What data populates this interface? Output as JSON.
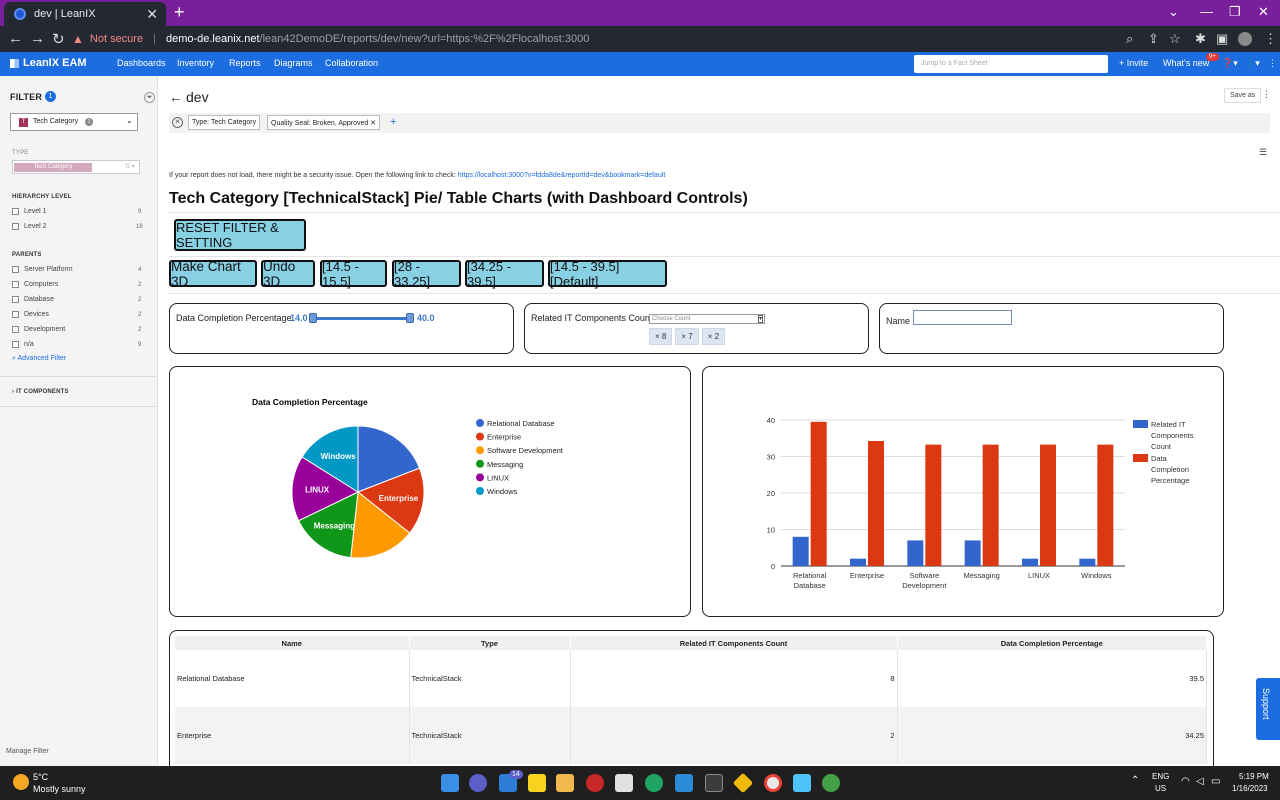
{
  "browser": {
    "tab_title": "dev | LeanIX",
    "close_glyph": "✕",
    "newtab_glyph": "+",
    "not_secure": "Not secure",
    "url_host": "demo-de.leanix.net",
    "url_path": "/lean42DemoDE/reports/dev/new?url=https:%2F%2Flocalhost:3000"
  },
  "appnav": {
    "brand": "LeanIX EAM",
    "items": [
      "Dashboards",
      "Inventory",
      "Reports",
      "Diagrams",
      "Collaboration"
    ],
    "jump_placeholder": "Jump to a Fact Sheet",
    "invite": "+ Invite",
    "whats_new": "What's new",
    "badge": "9+"
  },
  "sidebar": {
    "filter_label": "FILTER",
    "filter_count": "1",
    "type_select": "Tech Category",
    "type_select_count": "1",
    "type_letter": "T",
    "type_section": "TYPE",
    "type_value": "Tech Category",
    "hierarchy_title": "HIERARCHY LEVEL",
    "hierarchy": [
      {
        "label": "Level 1",
        "count": "9"
      },
      {
        "label": "Level 2",
        "count": "18"
      }
    ],
    "parents_title": "PARENTS",
    "parents": [
      {
        "label": "Server Platform",
        "count": "4"
      },
      {
        "label": "Computers",
        "count": "2"
      },
      {
        "label": "Database",
        "count": "2"
      },
      {
        "label": "Devices",
        "count": "2"
      },
      {
        "label": "Development",
        "count": "2"
      },
      {
        "label": "n/a",
        "count": "9"
      }
    ],
    "advanced": "Advanced Filter",
    "it_components": "IT COMPONENTS",
    "manage": "Manage Filter"
  },
  "report": {
    "title": "dev",
    "save_as": "Save as",
    "filter_type": "Type: ",
    "filter_type_val": "Tech Category",
    "filter_seal": "Quality Seal: ",
    "filter_seal_val": "Broken, Approved",
    "notice": "If your report does not load, there might be a security issue. Open the following link to check: ",
    "notice_link": "https://localhost:3000?v=fdda8de&reportId=dev&bookmark=default",
    "heading": "Tech Category [TechnicalStack] Pie/ Table Charts (with Dashboard Controls)",
    "reset": "RESET FILTER & SETTING",
    "buttons": [
      "Make Chart 3D",
      "Undo 3D",
      "[14.5 - 15.5]",
      "[28 - 33.25]",
      "[34.25 - 39.5]",
      "[14.5 - 39.5] [Default]"
    ],
    "slider_label": "Data Completion Percentage",
    "slider_min": "14.0",
    "slider_max": "40.0",
    "count_label": "Related IT Components Count",
    "count_placeholder": "Choose Count",
    "count_chips": [
      "× 8",
      "× 7",
      "× 2"
    ],
    "name_label": "Name"
  },
  "chart_data": [
    {
      "type": "pie",
      "title": "Data Completion Percentage",
      "categories": [
        "Relational Database",
        "Enterprise",
        "Software Development",
        "Messaging",
        "LINUX",
        "Windows"
      ],
      "values": [
        39.5,
        34.25,
        33.25,
        33.25,
        33.25,
        33.25
      ],
      "colors": [
        "#3366cc",
        "#dc3912",
        "#ff9900",
        "#109618",
        "#990099",
        "#0099c6"
      ],
      "legend": "right"
    },
    {
      "type": "bar",
      "categories": [
        "Relational Database",
        "Enterprise",
        "Software Development",
        "Messaging",
        "LINUX",
        "Windows"
      ],
      "series": [
        {
          "name": "Related IT Components Count",
          "values": [
            8,
            2,
            7,
            7,
            2,
            2
          ],
          "color": "#3366cc"
        },
        {
          "name": "Data Completion Percentage",
          "values": [
            39.5,
            34.25,
            33.25,
            33.25,
            33.25,
            33.25
          ],
          "color": "#dc3912"
        }
      ],
      "ylim": [
        0,
        40
      ],
      "yticks": [
        0,
        10,
        20,
        30,
        40
      ],
      "legend": "right"
    }
  ],
  "table": {
    "headers": [
      "Name",
      "Type",
      "Related IT Components Count",
      "Data Completion Percentage"
    ],
    "rows": [
      [
        "Relational Database",
        "TechnicalStack",
        "8",
        "39.5"
      ],
      [
        "Enterprise",
        "TechnicalStack",
        "2",
        "34.25"
      ]
    ]
  },
  "taskbar": {
    "temp": "5°C",
    "weather": "Mostly sunny",
    "lang1": "ENG",
    "lang2": "US",
    "time": "5:19 PM",
    "date": "1/16/2023",
    "mail_badge": "14"
  },
  "support": "Support"
}
